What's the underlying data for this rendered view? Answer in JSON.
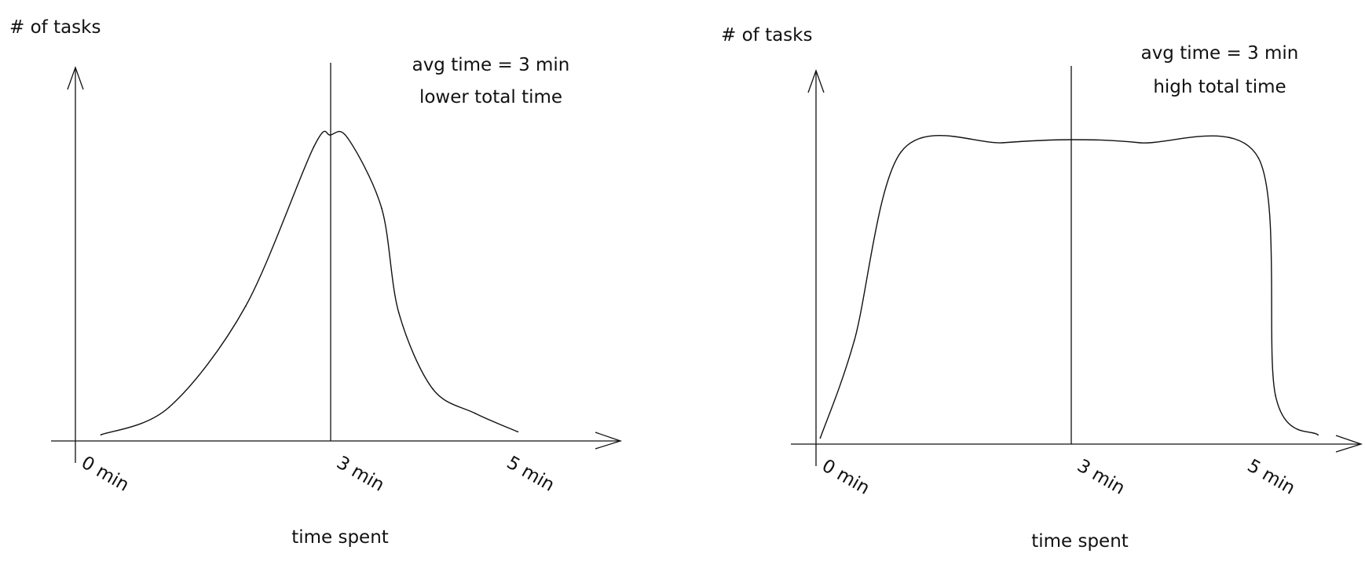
{
  "chart_data": [
    {
      "type": "line",
      "title": "",
      "xlabel": "time spent",
      "ylabel": "# of tasks",
      "annotations": [
        "avg time = 3 min",
        "lower total time"
      ],
      "tick_labels": [
        "0 min",
        "3 min",
        "5 min"
      ],
      "x_ticks": [
        0,
        3,
        5
      ],
      "xlim": [
        -0.2,
        5.6
      ],
      "ylim": [
        0,
        1
      ],
      "avg_line_x": 3,
      "x": [
        0.3,
        1.1,
        2.0,
        2.8,
        3.0,
        3.2,
        3.6,
        3.8,
        4.2,
        4.7,
        5.2
      ],
      "values": [
        0.02,
        0.11,
        0.44,
        0.96,
        1.0,
        0.99,
        0.76,
        0.42,
        0.17,
        0.09,
        0.03
      ],
      "grid": false
    },
    {
      "type": "line",
      "title": "",
      "xlabel": "time spent",
      "ylabel": "# of tasks",
      "annotations": [
        "avg time = 3 min",
        "high total time"
      ],
      "tick_labels": [
        "0 min",
        "3 min",
        "5 min"
      ],
      "x_ticks": [
        0,
        3,
        5
      ],
      "xlim": [
        -0.2,
        5.6
      ],
      "ylim": [
        0,
        1
      ],
      "avg_line_x": 3,
      "x": [
        0.05,
        0.45,
        1.0,
        2.2,
        3.0,
        3.8,
        5.2,
        5.4,
        5.9
      ],
      "values": [
        0.02,
        0.34,
        0.96,
        0.99,
        1.0,
        0.99,
        0.94,
        0.16,
        0.03
      ],
      "grid": false
    }
  ]
}
